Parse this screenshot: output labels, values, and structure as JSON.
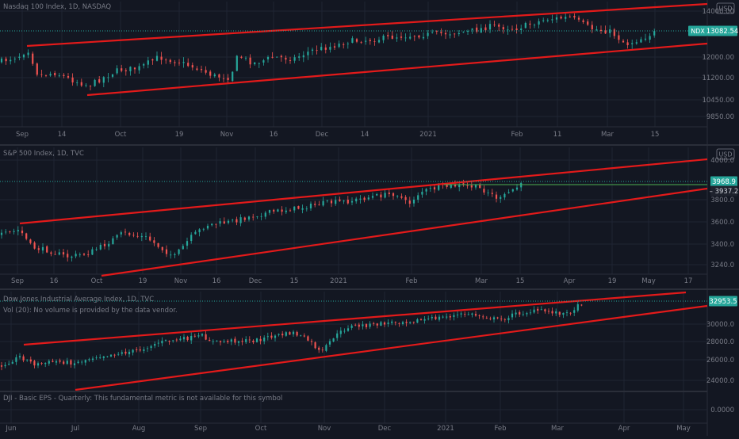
{
  "colors": {
    "background": "#131722",
    "grid": "#1f2433",
    "separator": "#2a2e39",
    "axis_text": "#787b86",
    "up": "#26a69a",
    "down": "#ef5350",
    "channel": "#e31a1a",
    "last_price_bg": "#26a69a",
    "dotted_last": "#26a69a",
    "support_line": "#4caf50"
  },
  "chart_data": [
    {
      "type": "candlestick",
      "title": "Nasdaq 100 Index, 1D, NASDAQ",
      "currency": "USD",
      "y_ticks": [
        14000,
        12000,
        11200,
        10450,
        9850
      ],
      "y_tick_labels": [
        "14000.00",
        "12000.00",
        "11200.00",
        "10450.00",
        "9850.00"
      ],
      "scale": "log",
      "x_tick_labels": [
        "Sep",
        "14",
        "Oct",
        "19",
        "Nov",
        "16",
        "Dec",
        "14",
        "2021",
        "Feb",
        "11",
        "Mar",
        "15"
      ],
      "last_price": {
        "symbol": "NDX",
        "value": "13082.54"
      },
      "grid": true
    },
    {
      "type": "candlestick",
      "title": "S&P 500 Index, 1D, TVC",
      "currency": "USD",
      "y_ticks": [
        4000,
        3800,
        3600,
        3400,
        3240
      ],
      "y_tick_labels": [
        "4000.0",
        "3800.0",
        "3600.0",
        "3400.0",
        "3240.0"
      ],
      "x_tick_labels": [
        "Sep",
        "16",
        "Oct",
        "19",
        "Nov",
        "16",
        "Dec",
        "15",
        "2021",
        "Feb",
        "Mar",
        "15",
        "Apr",
        "19",
        "May",
        "17"
      ],
      "last_price": {
        "value": "3968.9"
      },
      "support_price": {
        "value": "3937.2"
      },
      "grid": true
    },
    {
      "type": "candlestick",
      "title": "Dow Jones Industrial Average Index, 1D, TVC",
      "volume_note": "Vol (20): No volume is provided by the data vendor.",
      "y_ticks": [
        30000,
        28000,
        26000,
        24000
      ],
      "y_tick_labels": [
        "30000.0",
        "28000.0",
        "26000.0",
        "24000.0"
      ],
      "x_tick_labels": [
        "Jun",
        "Jul",
        "Aug",
        "Sep",
        "Oct",
        "Nov",
        "Dec",
        "2021",
        "Feb",
        "Mar",
        "Apr",
        "May"
      ],
      "last_price": {
        "value": "32953.5"
      },
      "grid": true,
      "sub_pane": {
        "title": "DJI - Basic EPS - Quarterly: This fundamental metric is not available for this symbol",
        "y_tick_label": "0.0000"
      }
    }
  ]
}
